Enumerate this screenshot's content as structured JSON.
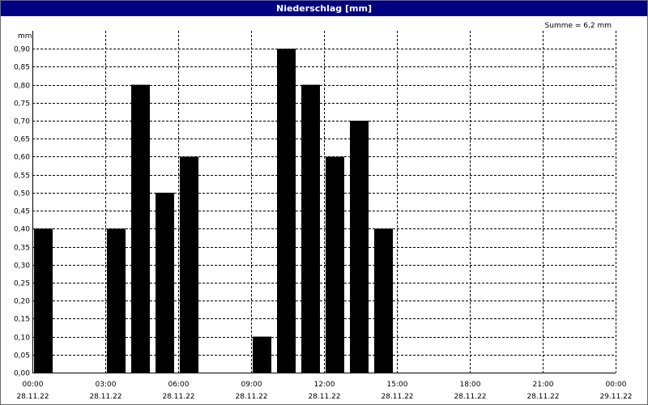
{
  "window": {
    "title": "Niederschlag [mm]"
  },
  "chart_data": {
    "type": "bar",
    "title": "Niederschlag [mm]",
    "ylabel": "mm",
    "annotation": "Summe = 6,2 mm",
    "ylim": [
      0,
      0.95
    ],
    "xlim": [
      "2022-11-28T00:00",
      "2022-11-29T00:00"
    ],
    "bar_width_minutes": 50,
    "grid": true,
    "y_ticks": [
      "0,00",
      "0,05",
      "0,10",
      "0,15",
      "0,20",
      "0,25",
      "0,30",
      "0,35",
      "0,40",
      "0,45",
      "0,50",
      "0,55",
      "0,60",
      "0,65",
      "0,70",
      "0,75",
      "0,80",
      "0,85",
      "0,90"
    ],
    "x_ticks": [
      {
        "time": "00:00",
        "date": "28.11.22"
      },
      {
        "time": "03:00",
        "date": "28.11.22"
      },
      {
        "time": "06:00",
        "date": "28.11.22"
      },
      {
        "time": "09:00",
        "date": "28.11.22"
      },
      {
        "time": "12:00",
        "date": "28.11.22"
      },
      {
        "time": "15:00",
        "date": "28.11.22"
      },
      {
        "time": "18:00",
        "date": "28.11.22"
      },
      {
        "time": "21:00",
        "date": "28.11.22"
      },
      {
        "time": "00:00",
        "date": "29.11.22"
      }
    ],
    "bar_color": "#000000",
    "x": [
      "2022-11-28T00:00",
      "2022-11-28T03:00",
      "2022-11-28T04:00",
      "2022-11-28T05:00",
      "2022-11-28T06:00",
      "2022-11-28T09:00",
      "2022-11-28T10:00",
      "2022-11-28T11:00",
      "2022-11-28T12:00",
      "2022-11-28T13:00",
      "2022-11-28T14:00"
    ],
    "values": [
      0.4,
      0.4,
      0.8,
      0.5,
      0.6,
      0.1,
      0.9,
      0.8,
      0.6,
      0.7,
      0.4
    ]
  }
}
